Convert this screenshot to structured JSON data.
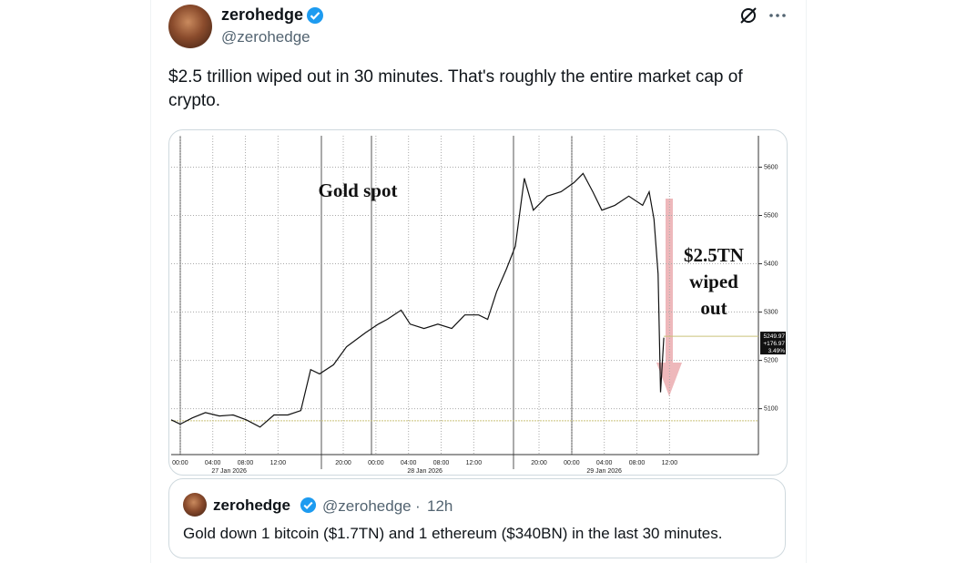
{
  "tweet": {
    "author": {
      "name": "zerohedge",
      "handle": "@zerohedge"
    },
    "text": "$2.5 trillion wiped out in 30 minutes. That's roughly the entire market cap of crypto.",
    "quote": {
      "name": "zerohedge",
      "handle": "@zerohedge",
      "separator": "·",
      "time": "12h",
      "text": "Gold down 1 bitcoin ($1.7TN) and 1 ethereum ($340BN) in the last 30 minutes."
    }
  },
  "chart_data": {
    "type": "line",
    "title": "Gold spot",
    "annotation": [
      "$2.5TN",
      "wiped",
      "out"
    ],
    "price_label": [
      "5249.97",
      "+176.97",
      "3.49%"
    ],
    "x": [
      -1.1,
      0,
      1.5,
      3.1,
      4.8,
      6.5,
      8.1,
      9.8,
      11.5,
      13.2,
      14.8,
      16,
      17.1,
      18.8,
      20.4,
      22.7,
      24.3,
      25.4,
      27.1,
      28.2,
      29.9,
      31.6,
      33.3,
      34.9,
      36.6,
      37.7,
      38.8,
      40,
      41.1,
      42.2,
      43.3,
      45,
      46.7,
      48.3,
      49.4,
      50.6,
      51.7,
      53.3,
      55,
      56.7,
      57.5,
      58.1,
      58.6,
      58.9,
      59.3
    ],
    "series": [
      {
        "color": "#111111",
        "values": [
          5077,
          5068,
          5081,
          5092,
          5085,
          5087,
          5077,
          5062,
          5087,
          5087,
          5096,
          5181,
          5172,
          5191,
          5228,
          5257,
          5275,
          5285,
          5304,
          5275,
          5266,
          5275,
          5266,
          5294,
          5294,
          5285,
          5342,
          5389,
          5436,
          5577,
          5511,
          5540,
          5549,
          5568,
          5587,
          5549,
          5511,
          5521,
          5540,
          5521,
          5549,
          5492,
          5379,
          5134,
          5247
        ]
      }
    ],
    "xlim": [
      -1.1,
      70.9
    ],
    "ylim": [
      5005,
      5665
    ],
    "xticks": [
      {
        "value": 0,
        "label": "00:00"
      },
      {
        "value": 4,
        "label": "04:00"
      },
      {
        "value": 8,
        "label": "08:00"
      },
      {
        "value": 12,
        "label": "12:00"
      },
      {
        "value": 20,
        "label": "20:00"
      },
      {
        "value": 24,
        "label": "00:00"
      },
      {
        "value": 28,
        "label": "04:00"
      },
      {
        "value": 32,
        "label": "08:00"
      },
      {
        "value": 36,
        "label": "12:00"
      },
      {
        "value": 44,
        "label": "20:00"
      },
      {
        "value": 48,
        "label": "00:00"
      },
      {
        "value": 52,
        "label": "04:00"
      },
      {
        "value": 56,
        "label": "08:00"
      },
      {
        "value": 60,
        "label": "12:00"
      }
    ],
    "date_labels": [
      {
        "value": 6,
        "label": "27 Jan 2026"
      },
      {
        "value": 30,
        "label": "28 Jan 2026"
      },
      {
        "value": 52,
        "label": "29 Jan 2026"
      }
    ],
    "yticks": [
      5100,
      5200,
      5300,
      5400,
      5500,
      5600
    ],
    "ref_lines": [
      5075,
      5250
    ],
    "grid": true
  }
}
